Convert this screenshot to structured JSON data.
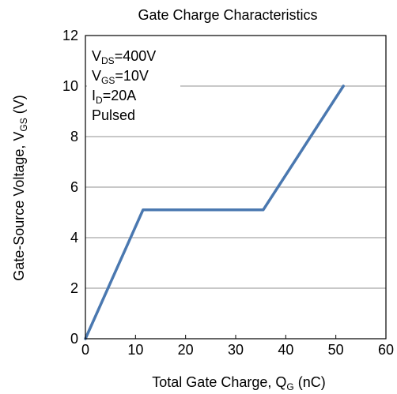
{
  "chart_data": {
    "type": "line",
    "title": "Gate Charge Characteristics",
    "xlabel": {
      "main": "Total Gate Charge, Q",
      "sub": "G",
      "unit": " (nC)"
    },
    "ylabel": {
      "main": "Gate-Source Voltage, V",
      "sub": "GS",
      "unit": " (V)"
    },
    "xlim": [
      0,
      60
    ],
    "ylim": [
      0,
      12
    ],
    "xticks": [
      0,
      10,
      20,
      30,
      40,
      50,
      60
    ],
    "yticks": [
      0,
      2,
      4,
      6,
      8,
      10,
      12
    ],
    "grid": "horizontal",
    "series": [
      {
        "color": "#4a78b0",
        "x": [
          0,
          11.5,
          35.5,
          51.5
        ],
        "y": [
          0,
          5.1,
          5.1,
          10
        ]
      }
    ],
    "annotations": [
      {
        "main": "V",
        "sub": "DS",
        "rest": "=400V"
      },
      {
        "main": "V",
        "sub": "GS",
        "rest": "=10V"
      },
      {
        "main": "I",
        "sub": "D",
        "rest": "=20A"
      },
      {
        "main": "Pulsed",
        "sub": "",
        "rest": ""
      }
    ]
  }
}
